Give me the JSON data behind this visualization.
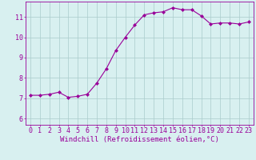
{
  "x": [
    0,
    1,
    2,
    3,
    4,
    5,
    6,
    7,
    8,
    9,
    10,
    11,
    12,
    13,
    14,
    15,
    16,
    17,
    18,
    19,
    20,
    21,
    22,
    23
  ],
  "y": [
    7.15,
    7.15,
    7.2,
    7.3,
    7.05,
    7.1,
    7.2,
    7.75,
    8.45,
    9.35,
    10.0,
    10.6,
    11.1,
    11.2,
    11.25,
    11.45,
    11.35,
    11.35,
    11.05,
    10.65,
    10.7,
    10.7,
    10.65,
    10.75
  ],
  "line_color": "#990099",
  "marker": "D",
  "marker_size": 2.0,
  "bg_color": "#d8f0f0",
  "grid_color": "#aacccc",
  "xlabel": "Windchill (Refroidissement éolien,°C)",
  "xlabel_color": "#990099",
  "xlabel_fontsize": 6.5,
  "tick_color": "#990099",
  "tick_fontsize": 6,
  "yticks": [
    6,
    7,
    8,
    9,
    10,
    11
  ],
  "ylim": [
    5.7,
    11.75
  ],
  "xlim": [
    -0.5,
    23.5
  ],
  "xticks": [
    0,
    1,
    2,
    3,
    4,
    5,
    6,
    7,
    8,
    9,
    10,
    11,
    12,
    13,
    14,
    15,
    16,
    17,
    18,
    19,
    20,
    21,
    22,
    23
  ]
}
